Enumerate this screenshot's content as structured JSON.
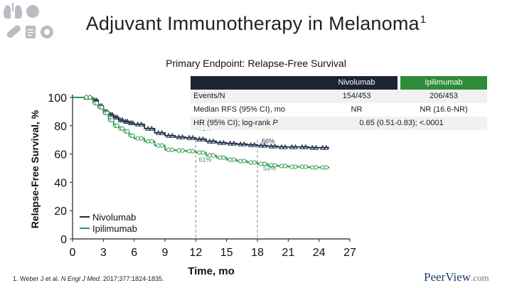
{
  "header": {
    "title": "Adjuvant Immunotherapy in Melanoma",
    "title_sup": "1",
    "subtitle": "Primary Endpoint: Relapse-Free Survival"
  },
  "table": {
    "columns": [
      "Nivolumab",
      "Ipilimumab"
    ],
    "rows": [
      {
        "label": "Events/N",
        "values": [
          "154/453",
          "206/453"
        ]
      },
      {
        "label": "Median RFS (95% CI), mo",
        "values": [
          "NR",
          "NR (16.6-NR)"
        ]
      },
      {
        "label": "HR (95% CI); log-rank",
        "label_italic": "P",
        "merged": "0.65 (0.51-0.83); <.0001"
      }
    ]
  },
  "chart_data": {
    "type": "line",
    "title": "",
    "xlabel": "Time, mo",
    "ylabel": "Relapse-Free Survival, %",
    "xlim": [
      0,
      27
    ],
    "ylim": [
      0,
      100
    ],
    "xticks": [
      0,
      3,
      6,
      9,
      12,
      15,
      18,
      21,
      24,
      27
    ],
    "yticks": [
      0,
      20,
      40,
      60,
      80,
      100
    ],
    "reference_lines_x": [
      12,
      18
    ],
    "series": [
      {
        "name": "Nivolumab",
        "color": "#1c2a4a",
        "marker": "triangle",
        "x": [
          0,
          1,
          2,
          2.5,
          3,
          3.5,
          4,
          4.5,
          5,
          5.5,
          6,
          7,
          8,
          9,
          10,
          11,
          12,
          13,
          14,
          15,
          16,
          17,
          18,
          19,
          20,
          21,
          22,
          23,
          24,
          25
        ],
        "y": [
          100,
          100,
          98,
          94,
          90,
          88,
          86,
          84,
          83,
          82,
          81,
          78,
          75,
          73,
          72,
          71.5,
          70.5,
          69,
          68,
          67.5,
          67,
          66.5,
          66,
          65.5,
          65,
          65,
          65,
          64.5,
          64.5,
          64.5
        ]
      },
      {
        "name": "Ipilimumab",
        "color": "#2e9a4a",
        "marker": "circle",
        "x": [
          0,
          1,
          2,
          2.5,
          3,
          3.5,
          4,
          4.5,
          5,
          5.5,
          6,
          7,
          8,
          9,
          10,
          11,
          12,
          13,
          14,
          15,
          16,
          17,
          18,
          19,
          20,
          21,
          22,
          23,
          24,
          25
        ],
        "y": [
          100,
          100,
          96,
          93,
          89,
          84,
          80,
          78,
          76,
          73,
          71,
          69,
          66,
          63,
          62.5,
          62,
          61,
          59,
          57.5,
          56,
          55,
          54,
          53,
          52,
          51.5,
          51,
          51,
          50.5,
          50.5,
          50.5
        ]
      }
    ],
    "annotations": [
      {
        "text": "71%",
        "series": "Nivolumab",
        "x": 12,
        "y": 70.5
      },
      {
        "text": "61%",
        "series": "Ipilimumab",
        "x": 12,
        "y": 61
      },
      {
        "text": "66%",
        "series": "Nivolumab",
        "x": 18,
        "y": 66
      },
      {
        "text": "53%",
        "series": "Ipilimumab",
        "x": 18,
        "y": 53
      }
    ],
    "legend": [
      "Nivolumab",
      "Ipilimumab"
    ],
    "legend_position": "bottom-left"
  },
  "footnote": {
    "prefix": "1. Weber J et al. ",
    "journal": "N Engl J Med",
    "suffix": ". 2017;377:1824-1835."
  },
  "brand": {
    "name_a": "Peer",
    "name_b": "View",
    "name_c": ".com"
  }
}
